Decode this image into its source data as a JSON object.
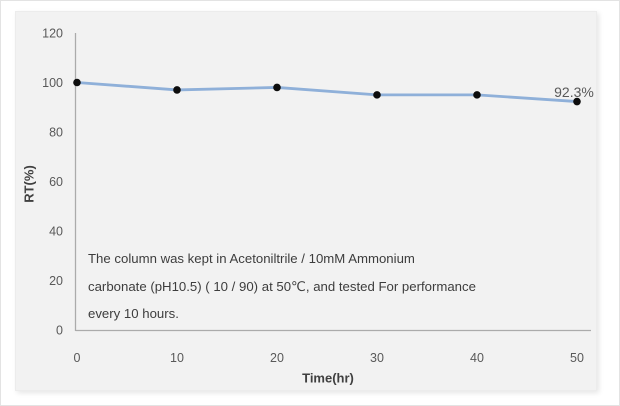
{
  "chart_data": {
    "type": "line",
    "x": [
      0,
      10,
      20,
      30,
      40,
      50
    ],
    "series": [
      {
        "name": "RT(%)",
        "values": [
          100,
          97,
          98,
          95,
          95,
          92.3
        ]
      }
    ],
    "title": "",
    "xlabel": "Time(hr)",
    "ylabel": "RT(%)",
    "xlim": [
      0,
      50
    ],
    "ylim": [
      0,
      120
    ],
    "x_ticks": [
      0,
      10,
      20,
      30,
      40,
      50
    ],
    "y_ticks": [
      0,
      20,
      40,
      60,
      80,
      100,
      120
    ],
    "grid": false,
    "legend": false,
    "line_color": "#8fb0d9",
    "marker_color": "#0d0d0d",
    "last_point_label": "92.3%",
    "annotation_lines": [
      "The column was kept in Acetoniltrile / 10mM Ammonium",
      "carbonate (pH10.5) ( 10 / 90) at 50℃, and tested For performance",
      "every 10 hours."
    ]
  },
  "colors": {
    "panel_bg": "#f2f2f2",
    "axis": "#ababab",
    "tick_text": "#595959",
    "title_text": "#404040",
    "annotation_text": "#3d3d3d",
    "label_text": "#595959",
    "line": "#8fb0d9",
    "marker": "#0d0d0d"
  }
}
